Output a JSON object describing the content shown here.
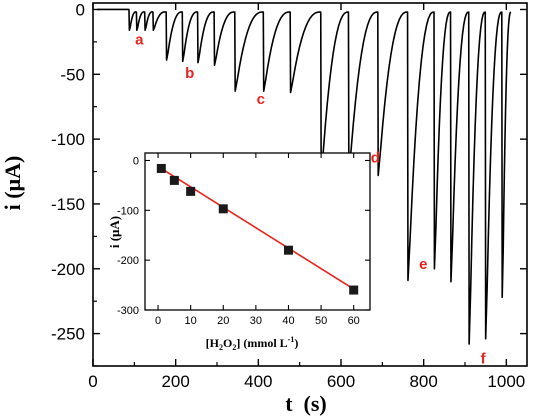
{
  "chart_data": [
    {
      "type": "line",
      "xlabel": "t  (s)",
      "ylabel": "i (μA)",
      "xlim": [
        0,
        1050
      ],
      "ylim": [
        -275,
        5
      ],
      "xticks": [
        0,
        200,
        400,
        600,
        800,
        1000
      ],
      "yticks": [
        0,
        -50,
        -100,
        -150,
        -200,
        -250
      ],
      "series_color": "#000000",
      "spikes": [
        {
          "t": 88,
          "i": -16
        },
        {
          "t": 106,
          "i": -16
        },
        {
          "t": 126,
          "i": -16
        },
        {
          "t": 146,
          "i": -16
        },
        {
          "t": 178,
          "i": -39
        },
        {
          "t": 217,
          "i": -40
        },
        {
          "t": 254,
          "i": -41
        },
        {
          "t": 294,
          "i": -43
        },
        {
          "t": 344,
          "i": -63
        },
        {
          "t": 413,
          "i": -63
        },
        {
          "t": 478,
          "i": -64
        },
        {
          "t": 552,
          "i": -128
        },
        {
          "t": 619,
          "i": -127
        },
        {
          "t": 690,
          "i": -128
        },
        {
          "t": 762,
          "i": -209
        },
        {
          "t": 826,
          "i": -200
        },
        {
          "t": 866,
          "i": -210
        },
        {
          "t": 910,
          "i": -258
        },
        {
          "t": 950,
          "i": -254
        },
        {
          "t": 990,
          "i": -222
        }
      ],
      "baseline_end": [
        0,
        -2
      ],
      "annotations": [
        {
          "label": "a",
          "t": 112,
          "i": -27
        },
        {
          "label": "b",
          "t": 234,
          "i": -53
        },
        {
          "label": "c",
          "t": 406,
          "i": -73
        },
        {
          "label": "d",
          "t": 683,
          "i": -118
        },
        {
          "label": "e",
          "t": 799,
          "i": -200
        },
        {
          "label": "f",
          "t": 944,
          "i": -273
        }
      ],
      "annotation_color": "#e8231e"
    },
    {
      "type": "scatter",
      "inset": true,
      "xlabel": "[H2O2] (mmol L-1)",
      "ylabel": "i (μA)",
      "xlim": [
        -4,
        65
      ],
      "ylim": [
        -300,
        15
      ],
      "xticks": [
        0,
        10,
        20,
        30,
        40,
        50,
        60
      ],
      "yticks": [
        0,
        -100,
        -200,
        -300
      ],
      "x": [
        1,
        5,
        10,
        20,
        40,
        60
      ],
      "y": [
        -16,
        -40,
        -62,
        -97,
        -180,
        -260
      ],
      "marker_color": "#1a1a1a",
      "fit_line": {
        "x": [
          0,
          60
        ],
        "y": [
          -12,
          -258
        ],
        "color": "#e8231e"
      }
    }
  ]
}
